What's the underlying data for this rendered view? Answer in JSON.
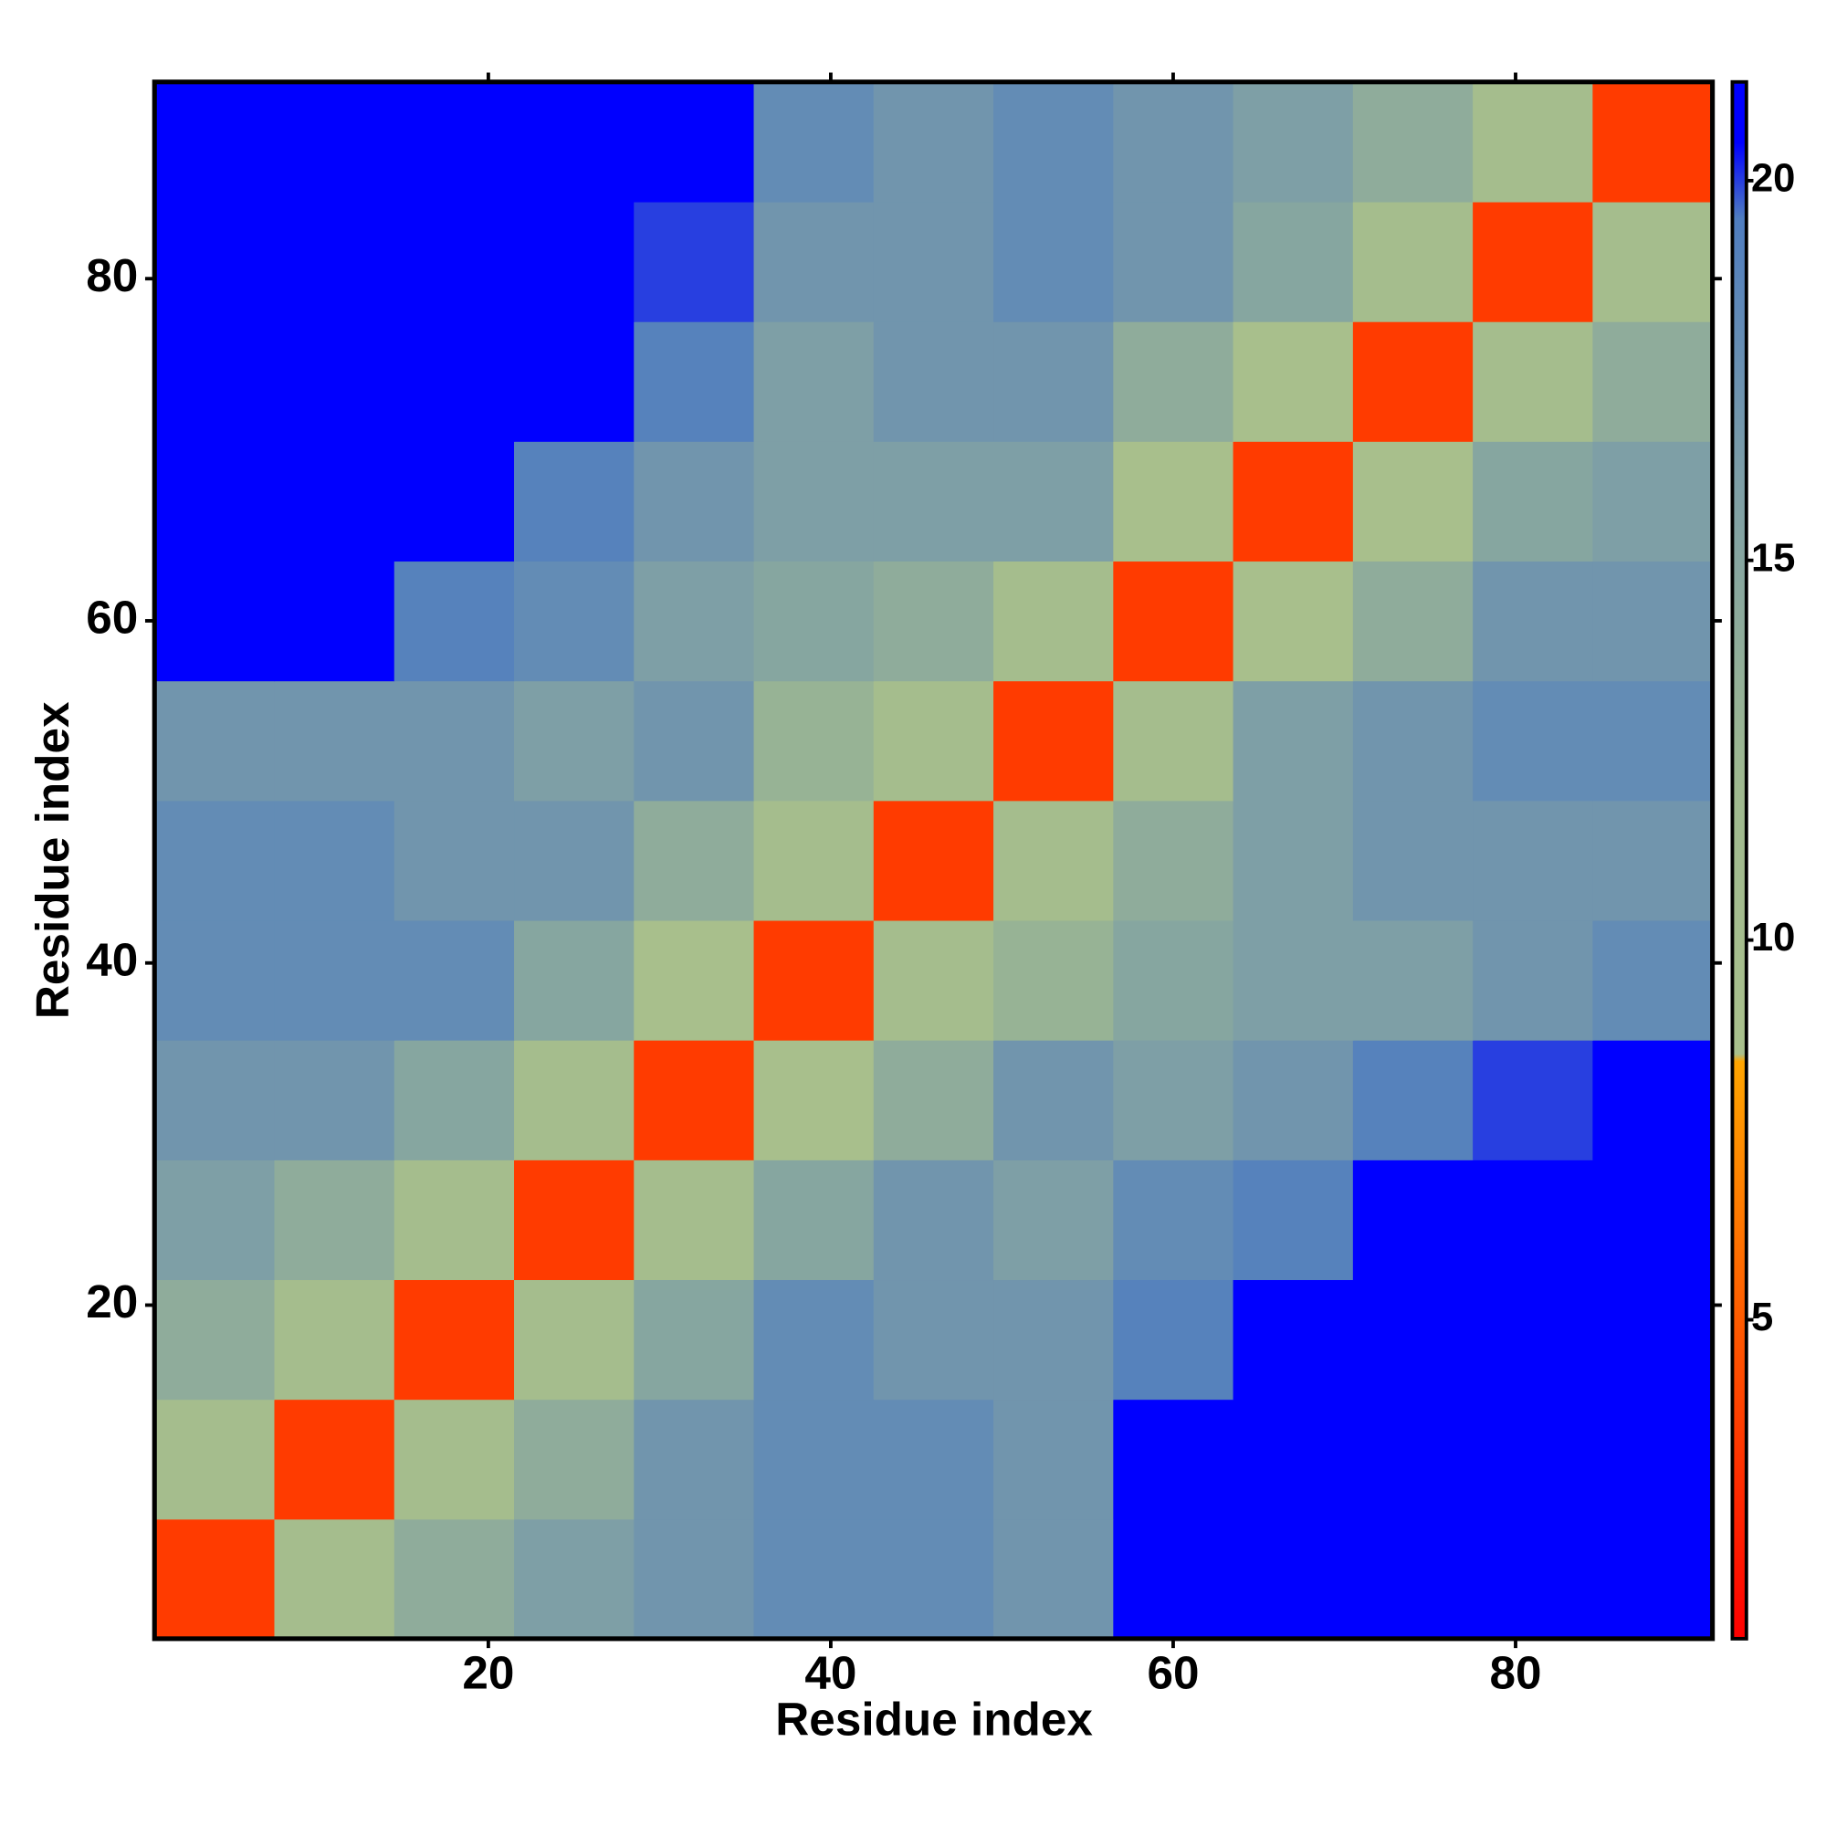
{
  "chart_data": {
    "type": "heatmap",
    "xlabel": "Residue index",
    "ylabel": "Residue index",
    "x": [
      4,
      11,
      18,
      25,
      32,
      39,
      46,
      53,
      60,
      67,
      74,
      81,
      88
    ],
    "y": [
      4,
      11,
      18,
      25,
      32,
      39,
      46,
      53,
      60,
      67,
      74,
      81,
      88
    ],
    "z": [
      [
        3.5,
        10,
        14,
        16,
        17,
        18,
        18,
        17,
        21,
        21,
        21,
        21,
        21
      ],
      [
        10,
        3.5,
        10,
        14,
        17,
        18,
        18,
        17,
        21,
        21,
        21,
        21,
        21
      ],
      [
        14,
        10,
        3.5,
        10,
        15,
        18,
        17,
        17,
        19,
        21,
        21,
        21,
        21
      ],
      [
        16,
        14,
        10,
        3.5,
        10,
        15,
        17,
        16,
        18,
        19,
        21,
        21,
        21
      ],
      [
        17,
        17,
        15,
        10,
        3.5,
        9,
        14,
        17,
        16,
        17,
        19,
        20,
        21
      ],
      [
        18,
        18,
        18,
        15,
        9,
        3.5,
        10,
        13,
        15,
        16,
        16,
        17,
        18
      ],
      [
        18,
        18,
        17,
        17,
        14,
        10,
        3.5,
        10,
        14,
        16,
        17,
        17,
        17
      ],
      [
        17,
        17,
        17,
        16,
        17,
        13,
        10,
        3.5,
        10,
        16,
        17,
        18,
        18
      ],
      [
        21,
        21,
        19,
        18,
        16,
        15,
        14,
        10,
        3.5,
        9,
        14,
        17,
        17
      ],
      [
        21,
        21,
        21,
        19,
        17,
        16,
        16,
        16,
        9,
        3.5,
        9,
        15,
        16
      ],
      [
        21,
        21,
        21,
        21,
        19,
        16,
        17,
        17,
        14,
        9,
        3.5,
        10,
        14
      ],
      [
        21,
        21,
        21,
        21,
        20,
        17,
        17,
        18,
        17,
        15,
        10,
        3.5,
        10
      ],
      [
        21,
        21,
        21,
        21,
        21,
        18,
        17,
        18,
        17,
        16,
        14,
        10,
        3.5
      ]
    ],
    "xlim": [
      0.5,
      91.5
    ],
    "ylim": [
      0.5,
      91.5
    ],
    "xticks": [
      20,
      40,
      60,
      80
    ],
    "yticks": [
      20,
      40,
      60,
      80
    ],
    "clim": [
      0.8,
      21.3
    ],
    "cticks": [
      5,
      10,
      15,
      20
    ],
    "colorscale": [
      [
        0.8,
        "#ff0000"
      ],
      [
        8.4,
        "#ffa500"
      ],
      [
        8.5,
        "#a9c08c"
      ],
      [
        12,
        "#9fb98f"
      ],
      [
        16,
        "#7e9fa6"
      ],
      [
        19.5,
        "#4f7dc0"
      ],
      [
        20.5,
        "#0000ff"
      ],
      [
        21.3,
        "#0000ff"
      ]
    ]
  }
}
